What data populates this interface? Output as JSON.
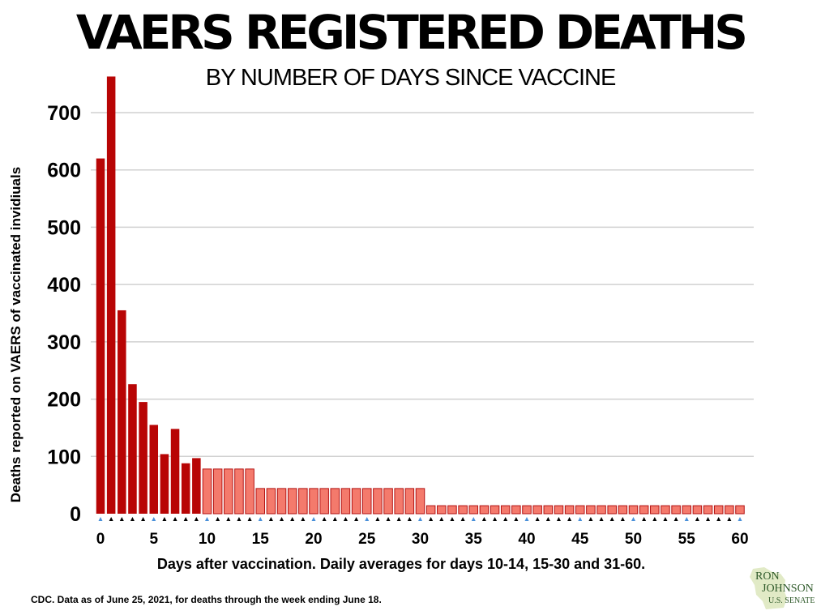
{
  "title": "VAERS REGISTERED DEATHS",
  "subtitle": "BY NUMBER OF DAYS SINCE VACCINE",
  "footer": {
    "source": "CDC. Data as of June 25, 2021, for deaths through the week ending June 18.",
    "logo": {
      "line1": "RON",
      "line2": "JOHNSON",
      "line3": "U.S. SENATE"
    }
  },
  "colors": {
    "daily": "#b80505",
    "average": "#f47a6c",
    "grid": "#d0d0d0",
    "tick_marker": "#000000",
    "tick_marker_alt": "#4a90d9"
  },
  "chart_data": {
    "type": "bar",
    "title": "VAERS REGISTERED DEATHS",
    "subtitle": "BY NUMBER OF DAYS SINCE VACCINE",
    "xlabel": "Days after vaccination. Daily averages for days 10-14, 15-30 and 31-60.",
    "ylabel": "Deaths reported on VAERS of vaccinated invidiuals",
    "ylim": [
      0,
      770
    ],
    "yticks": [
      0,
      100,
      200,
      300,
      400,
      500,
      600,
      700
    ],
    "xlim": [
      0,
      60
    ],
    "xticks": [
      0,
      5,
      10,
      15,
      20,
      25,
      30,
      35,
      40,
      45,
      50,
      55,
      60
    ],
    "grid": true,
    "legend": "none",
    "series": [
      {
        "kind": "daily",
        "x": [
          0,
          1,
          2,
          3,
          4,
          5,
          6,
          7,
          8,
          9
        ],
        "values": [
          620,
          763,
          355,
          226,
          195,
          155,
          104,
          148,
          88,
          97
        ]
      },
      {
        "kind": "daily average",
        "x": [
          10,
          11,
          12,
          13,
          14
        ],
        "values": [
          78,
          78,
          78,
          78,
          78
        ]
      },
      {
        "kind": "daily average",
        "x": [
          15,
          16,
          17,
          18,
          19,
          20,
          21,
          22,
          23,
          24,
          25,
          26,
          27,
          28,
          29,
          30
        ],
        "values": [
          44,
          44,
          44,
          44,
          44,
          44,
          44,
          44,
          44,
          44,
          44,
          44,
          44,
          44,
          44,
          44
        ]
      },
      {
        "kind": "daily average",
        "x": [
          31,
          32,
          33,
          34,
          35,
          36,
          37,
          38,
          39,
          40,
          41,
          42,
          43,
          44,
          45,
          46,
          47,
          48,
          49,
          50,
          51,
          52,
          53,
          54,
          55,
          56,
          57,
          58,
          59,
          60
        ],
        "values": [
          14,
          14,
          14,
          14,
          14,
          14,
          14,
          14,
          14,
          14,
          14,
          14,
          14,
          14,
          14,
          14,
          14,
          14,
          14,
          14,
          14,
          14,
          14,
          14,
          14,
          14,
          14,
          14,
          14,
          14
        ]
      }
    ]
  }
}
